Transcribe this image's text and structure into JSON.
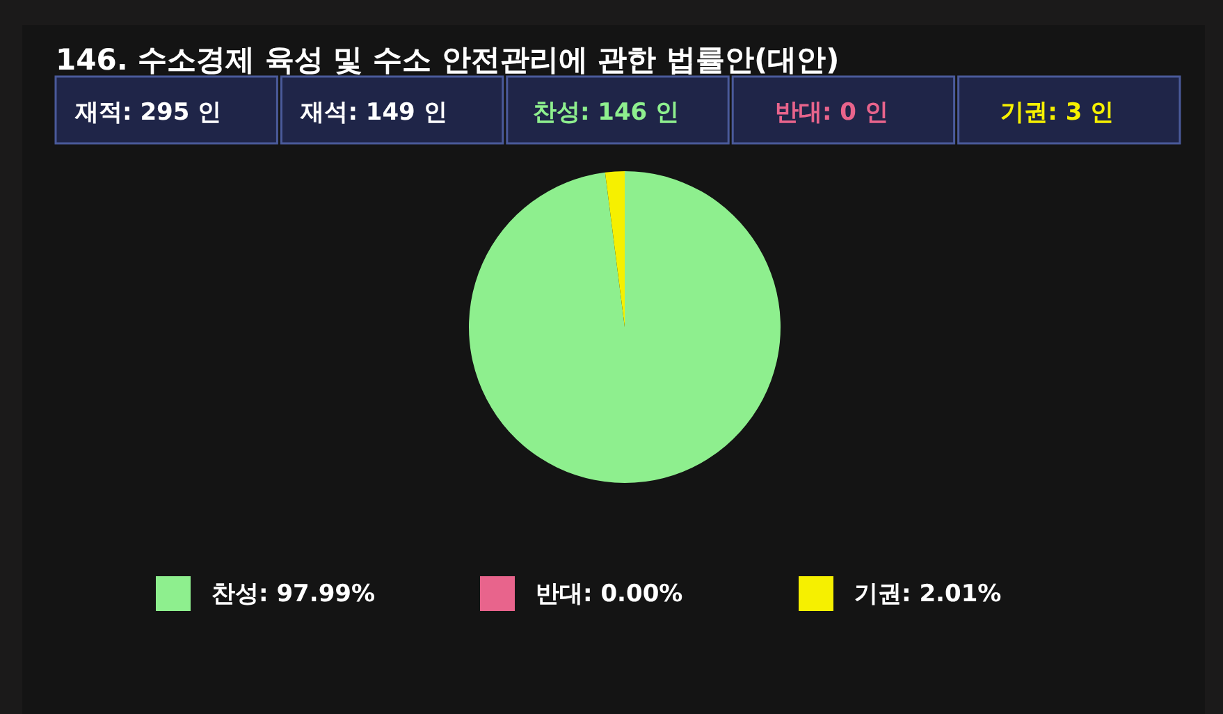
{
  "chart_data": {
    "type": "pie",
    "title": "146. 수소경제 육성 및 수소 안전관리에 관한 법률안(대안)",
    "annotations": [
      "재적: 295 인",
      "재석: 149 인",
      "찬성: 146 인",
      "반대:  0 인",
      "기권:  3 인"
    ],
    "categories": [
      "찬성",
      "반대",
      "기권"
    ],
    "values": [
      97.99,
      0.0,
      2.01
    ],
    "value_labels": [
      "97.99%",
      "0.00%",
      "2.01%"
    ],
    "colors": [
      "#8eef8e",
      "#e8648c",
      "#f6f000"
    ],
    "legend": "bottom"
  }
}
